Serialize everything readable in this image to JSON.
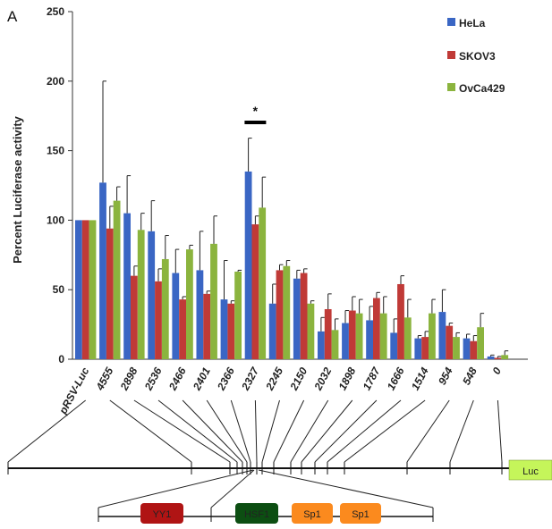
{
  "panel_label": "A",
  "colors": {
    "HeLa": "#3a66c4",
    "SKOV3": "#c03a37",
    "OvCa429": "#8bb43e",
    "YY1": "#b01414",
    "HSF1": "#0c4e12",
    "Sp1": "#fb8a1e",
    "Luc": "#c5f55a"
  },
  "chart_data": {
    "type": "bar",
    "title": "",
    "xlabel": "",
    "ylabel": "Percent Luciferase activity",
    "ylim": [
      0,
      250
    ],
    "yticks": [
      0,
      50,
      100,
      150,
      200,
      250
    ],
    "categories": [
      "pRSV-Luc",
      "4555",
      "2898",
      "2536",
      "2466",
      "2401",
      "2366",
      "2327",
      "2245",
      "2150",
      "2032",
      "1898",
      "1787",
      "1666",
      "1514",
      "954",
      "548",
      "0"
    ],
    "series": [
      {
        "name": "HeLa",
        "values": [
          100,
          127,
          105,
          92,
          62,
          64,
          43,
          135,
          40,
          58,
          20,
          26,
          28,
          19,
          15,
          34,
          15,
          2
        ],
        "errors": [
          0,
          73,
          27,
          22,
          17,
          28,
          28,
          24,
          14,
          6,
          10,
          9,
          10,
          10,
          2,
          16,
          3,
          1
        ]
      },
      {
        "name": "SKOV3",
        "values": [
          100,
          94,
          60,
          56,
          43,
          47,
          40,
          97,
          64,
          62,
          36,
          35,
          44,
          54,
          16,
          24,
          13,
          1
        ],
        "errors": [
          0,
          16,
          7,
          9,
          2,
          2,
          2,
          6,
          4,
          3,
          11,
          10,
          4,
          6,
          4,
          2,
          4,
          1
        ]
      },
      {
        "name": "OvCa429",
        "values": [
          100,
          114,
          93,
          72,
          79,
          83,
          63,
          109,
          67,
          40,
          21,
          33,
          33,
          30,
          33,
          16,
          23,
          3
        ],
        "errors": [
          0,
          10,
          12,
          17,
          3,
          20,
          1,
          22,
          4,
          2,
          8,
          10,
          12,
          13,
          10,
          3,
          10,
          3
        ]
      }
    ],
    "annotations": [
      {
        "category": "2327",
        "text": "*"
      }
    ]
  },
  "promoter_map": {
    "end_box_label": "Luc",
    "elements": [
      "YY1",
      "HSF1",
      "Sp1",
      "Sp1"
    ]
  }
}
